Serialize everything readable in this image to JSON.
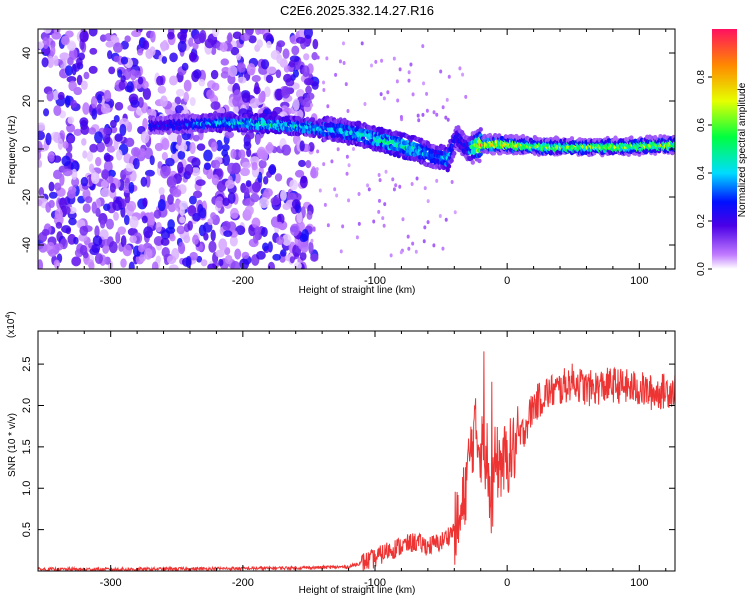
{
  "page_title": "C2E6.2025.332.14.27.R16",
  "chart_data": [
    {
      "type": "heatmap",
      "title": "C2E6.2025.332.14.27.R16",
      "xlabel": "Height of straight line (km)",
      "ylabel": "Frequency (Hz)",
      "xlim": [
        -355,
        127
      ],
      "ylim": [
        -50,
        50
      ],
      "xticks": [
        -300,
        -200,
        -100,
        0,
        100
      ],
      "xtick_labels": [
        "-300",
        "-200",
        "-100",
        "0",
        "100"
      ],
      "yticks": [
        -40,
        -20,
        0,
        20,
        40
      ],
      "ytick_labels": [
        "-40",
        "-20",
        "0",
        "20",
        "40"
      ],
      "colorbar": {
        "label": "Normalized spectral amplitude",
        "range": [
          0,
          1
        ],
        "ticks": [
          0.0,
          0.2,
          0.4,
          0.6,
          0.8
        ],
        "tick_labels": [
          "0.0",
          "0.2",
          "0.4",
          "0.6",
          "0.8"
        ]
      },
      "noise_region": {
        "x": [
          -355,
          -145
        ],
        "amplitude": "low (0.0-0.2)"
      },
      "ridge": {
        "x": [
          -270,
          -240,
          -210,
          -180,
          -150,
          -130,
          -110,
          -90,
          -70,
          -55,
          -45,
          -38,
          -30,
          -20,
          0,
          30,
          60,
          90,
          127
        ],
        "frequency": [
          10,
          10.5,
          11,
          10.5,
          9,
          8,
          6,
          3,
          0,
          -3,
          -4,
          5,
          0,
          2,
          2,
          1,
          1,
          1,
          2
        ],
        "amplitude": [
          0.25,
          0.3,
          0.4,
          0.45,
          0.4,
          0.35,
          0.4,
          0.45,
          0.45,
          0.3,
          0.4,
          0.25,
          0.3,
          0.8,
          0.7,
          0.6,
          0.6,
          0.6,
          0.65
        ]
      }
    },
    {
      "type": "line",
      "xlabel": "Height of straight line (km)",
      "ylabel": "SNR (10 * v/v)",
      "y_scale_label": "(x10",
      "y_scale_exponent": "4",
      "xlim": [
        -355,
        127
      ],
      "ylim": [
        0,
        2.9
      ],
      "xticks": [
        -300,
        -200,
        -100,
        0,
        100
      ],
      "xtick_labels": [
        "-300",
        "-200",
        "-100",
        "0",
        "100"
      ],
      "yticks": [
        0.5,
        1.0,
        1.5,
        2.0,
        2.5
      ],
      "ytick_labels": [
        "0.5",
        "1.0",
        "1.5",
        "2.0",
        "2.5"
      ],
      "color": "#ee3333",
      "series": [
        {
          "name": "SNR",
          "x": [
            -355,
            -300,
            -200,
            -150,
            -120,
            -100,
            -90,
            -80,
            -70,
            -60,
            -50,
            -40,
            -35,
            -30,
            -25,
            -20,
            -15,
            -12,
            -10,
            -5,
            0,
            10,
            20,
            30,
            40,
            50,
            60,
            80,
            100,
            110,
            127
          ],
          "y": [
            0.02,
            0.02,
            0.03,
            0.04,
            0.05,
            0.15,
            0.25,
            0.3,
            0.35,
            0.3,
            0.35,
            0.5,
            0.6,
            1.2,
            1.7,
            1.5,
            1.4,
            0.6,
            1.3,
            1.3,
            1.35,
            1.6,
            2.0,
            2.15,
            2.2,
            2.3,
            2.2,
            2.25,
            2.2,
            2.15,
            2.2
          ]
        }
      ]
    }
  ]
}
